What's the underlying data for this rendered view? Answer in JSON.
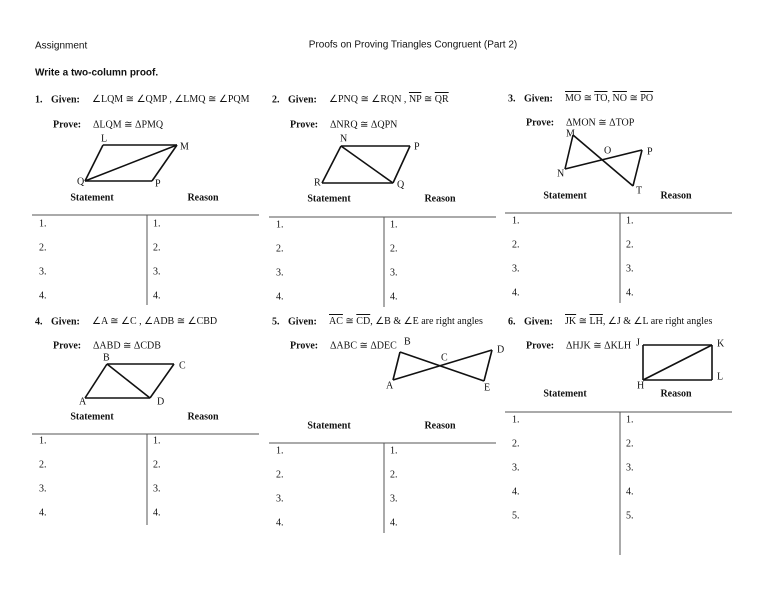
{
  "header": {
    "label": "Assignment",
    "title": "Proofs on Proving Triangles Congruent (Part 2)",
    "instruction": "Write a two-column proof."
  },
  "problems": [
    {
      "number": "1.",
      "given_label": "Given:",
      "given": [
        "∠LQM ≅ ∠QMP , ∠LMQ ≅ ∠PQM"
      ],
      "prove_label": "Prove:",
      "prove": "ΔLQM ≅ ΔPMQ",
      "vertices": [
        "L",
        "M",
        "Q",
        "P"
      ],
      "statement": "Statement",
      "reason": "Reason",
      "rows": [
        "1.",
        "2.",
        "3.",
        "4."
      ]
    },
    {
      "number": "2.",
      "given_label": "Given:",
      "given": [
        "∠PNQ ≅ ∠RQN , ",
        {
          "text": "NP",
          "overline": true
        },
        " ≅ ",
        {
          "text": "QR",
          "overline": true
        }
      ],
      "prove_label": "Prove:",
      "prove": "ΔNRQ ≅ ΔQPN",
      "vertices": [
        "N",
        "P",
        "R",
        "Q"
      ],
      "statement": "Statement",
      "reason": "Reason",
      "rows": [
        "1.",
        "2.",
        "3.",
        "4."
      ]
    },
    {
      "number": "3.",
      "given_label": "Given:",
      "given": [
        {
          "text": "MO",
          "overline": true
        },
        " ≅ ",
        {
          "text": "TO",
          "overline": true
        },
        ",  ",
        {
          "text": "NO",
          "overline": true
        },
        " ≅ ",
        {
          "text": "PO",
          "overline": true
        }
      ],
      "prove_label": "Prove:",
      "prove": "ΔMON ≅ ΔTOP",
      "vertices": [
        "M",
        "O",
        "P",
        "N",
        "T"
      ],
      "statement": "Statement",
      "reason": "Reason",
      "rows": [
        "1.",
        "2.",
        "3.",
        "4."
      ]
    },
    {
      "number": "4.",
      "given_label": "Given:",
      "given": [
        "∠A ≅ ∠C , ∠ADB ≅ ∠CBD"
      ],
      "prove_label": "Prove:",
      "prove": "ΔABD ≅ ΔCDB",
      "vertices": [
        "B",
        "C",
        "A",
        "D"
      ],
      "statement": "Statement",
      "reason": "Reason",
      "rows": [
        "1.",
        "2.",
        "3.",
        "4."
      ]
    },
    {
      "number": "5.",
      "given_label": "Given:",
      "given": [
        {
          "text": "AC",
          "overline": true
        },
        " ≅ ",
        {
          "text": "CD",
          "overline": true
        },
        ",  ∠B & ∠E are right angles"
      ],
      "prove_label": "Prove:",
      "prove": "ΔABC ≅ ΔDEC",
      "vertices": [
        "B",
        "C",
        "D",
        "A",
        "E"
      ],
      "statement": "Statement",
      "reason": "Reason",
      "rows": [
        "1.",
        "2.",
        "3.",
        "4."
      ]
    },
    {
      "number": "6.",
      "given_label": "Given:",
      "given": [
        {
          "text": "JK",
          "overline": true
        },
        " ≅ ",
        {
          "text": "LH",
          "overline": true
        },
        ",  ∠J & ∠L are right angles"
      ],
      "prove_label": "Prove:",
      "prove": "ΔHJK ≅ ΔKLH",
      "vertices": [
        "J",
        "K",
        "H",
        "L"
      ],
      "statement": "Statement",
      "reason": "Reason",
      "rows": [
        "1.",
        "2.",
        "3.",
        "4.",
        "5."
      ]
    }
  ]
}
